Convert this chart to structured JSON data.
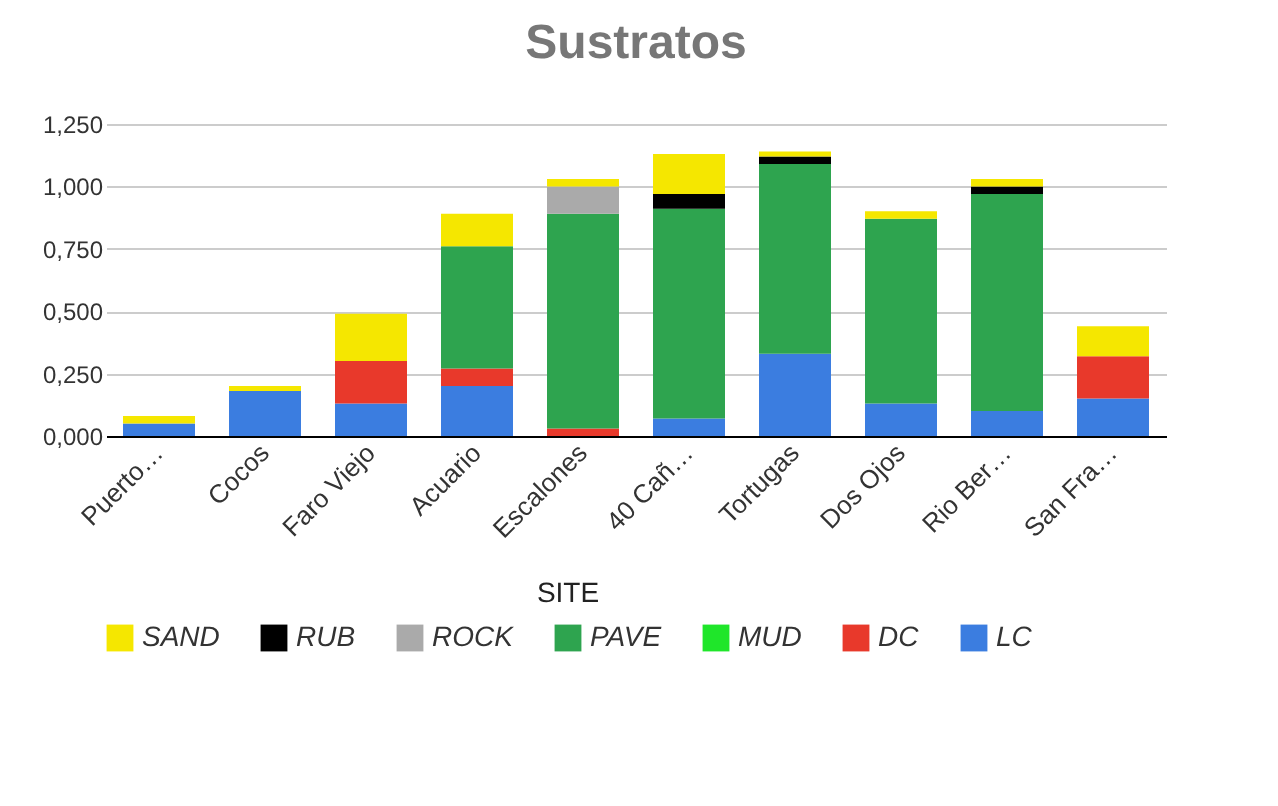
{
  "chart_data": {
    "type": "bar",
    "title": "Sustratos",
    "xlabel": null,
    "legend_title": "SITE",
    "categories": [
      "Puerto…",
      "Cocos",
      "Faro Viejo",
      "Acuario",
      "Escalones",
      "40 Cañ…",
      "Tortugas",
      "Dos Ojos",
      "Rio Ber…",
      "San Fra…"
    ],
    "stacked": true,
    "series": [
      {
        "name": "LC",
        "color": "#3b7de0",
        "values": [
          0.05,
          0.18,
          0.13,
          0.2,
          0,
          0.07,
          0.33,
          0.13,
          0.1,
          0.15
        ]
      },
      {
        "name": "DC",
        "color": "#e8392b",
        "values": [
          0,
          0,
          0.17,
          0.07,
          0.03,
          0,
          0,
          0,
          0,
          0.17
        ]
      },
      {
        "name": "MUD",
        "color": "#1fe62a",
        "values": [
          0,
          0,
          0,
          0,
          0,
          0,
          0,
          0,
          0,
          0
        ]
      },
      {
        "name": "PAVE",
        "color": "#2ea44f",
        "values": [
          0,
          0,
          0,
          0.49,
          0.86,
          0.84,
          0.76,
          0.74,
          0.87,
          0
        ]
      },
      {
        "name": "ROCK",
        "color": "#aaaaaa",
        "values": [
          0,
          0,
          0,
          0,
          0.11,
          0,
          0,
          0,
          0,
          0
        ]
      },
      {
        "name": "RUB",
        "color": "#000000",
        "values": [
          0,
          0,
          0,
          0,
          0,
          0.06,
          0.03,
          0,
          0.03,
          0
        ]
      },
      {
        "name": "SAND",
        "color": "#f5e700",
        "values": [
          0.03,
          0.02,
          0.19,
          0.13,
          0.03,
          0.16,
          0.02,
          0.03,
          0.03,
          0.12
        ]
      }
    ],
    "ylim": [
      0,
      1.25
    ],
    "yticks": [
      {
        "value": 0,
        "label": "0,000"
      },
      {
        "value": 0.25,
        "label": "0,250"
      },
      {
        "value": 0.5,
        "label": "0,500"
      },
      {
        "value": 0.75,
        "label": "0,750"
      },
      {
        "value": 1,
        "label": "1,000"
      },
      {
        "value": 1.25,
        "label": "1,250"
      }
    ],
    "grid": "y",
    "legend": "bottom"
  }
}
